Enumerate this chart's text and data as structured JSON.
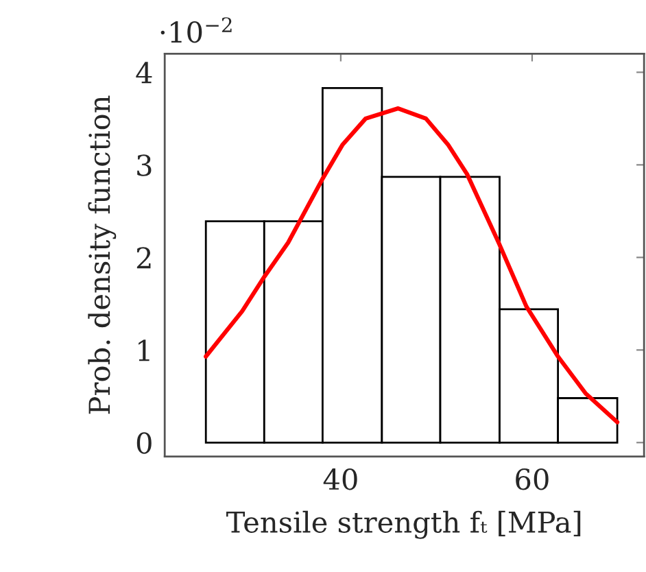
{
  "chart_data": {
    "type": "histogram",
    "ylabel": "Prob. density function",
    "xlabel": "Tensile strength fₜ [MPa]",
    "annotations": [
      "·10$^{−2}$"
    ],
    "xlim": [
      21.6,
      71.7
    ],
    "xticks": [
      40,
      60
    ],
    "ylim": [
      -0.15,
      4.2
    ],
    "yticks": [
      0,
      1,
      2,
      3,
      4
    ],
    "grid": false,
    "legend": false,
    "series": [
      {
        "color": "#ffffff",
        "bins": [
          25.9,
          32.0,
          38.1,
          44.3,
          50.4,
          56.6,
          62.7,
          68.9
        ],
        "values": [
          2.39,
          2.39,
          3.83,
          2.87,
          2.87,
          1.44,
          0.48
        ]
      },
      {
        "type": "line",
        "color": "#ff0000",
        "x": [
          25.9,
          29.7,
          32.0,
          34.5,
          38.1,
          40.2,
          42.6,
          46.0,
          48.9,
          51.2,
          53.2,
          56.5,
          59.4,
          62.7,
          65.6,
          68.9
        ],
        "values": [
          0.93,
          1.42,
          1.79,
          2.16,
          2.85,
          3.22,
          3.5,
          3.61,
          3.5,
          3.22,
          2.9,
          2.16,
          1.47,
          0.93,
          0.53,
          0.22
        ]
      }
    ]
  }
}
